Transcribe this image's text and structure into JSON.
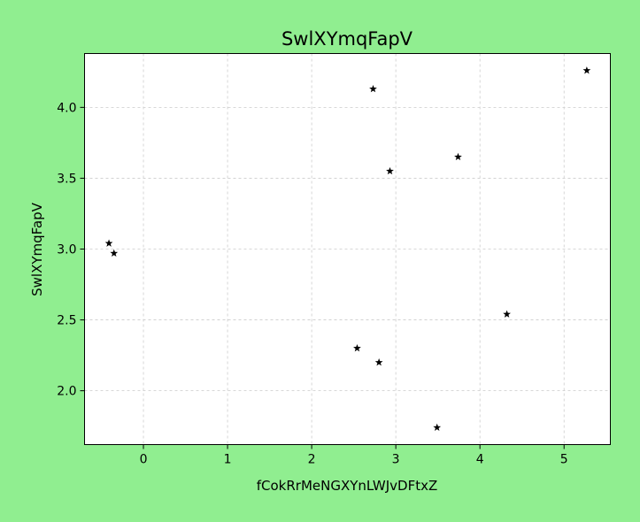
{
  "chart_data": {
    "type": "scatter",
    "title": "SwlXYmqFapV",
    "xlabel": "fCokRrMeNGXYnLWJvDFtxZ",
    "ylabel": "SwlXYmqFapV",
    "xlim": [
      -0.7,
      5.55
    ],
    "ylim": [
      1.62,
      4.38
    ],
    "x_ticks": [
      0,
      1,
      2,
      3,
      4,
      5
    ],
    "x_tick_labels": [
      "0",
      "1",
      "2",
      "3",
      "4",
      "5"
    ],
    "y_ticks": [
      2.0,
      2.5,
      3.0,
      3.5,
      4.0
    ],
    "y_tick_labels": [
      "2.0",
      "2.5",
      "3.0",
      "3.5",
      "4.0"
    ],
    "grid": true,
    "marker": "star",
    "colors": {
      "background": "#90ee90",
      "plot_bg": "#ffffff",
      "marker": "#000000",
      "grid": "#cccccc"
    },
    "series": [
      {
        "x": [
          -0.41,
          -0.35,
          2.54,
          2.73,
          2.8,
          2.93,
          3.49,
          3.74,
          4.32,
          5.27
        ],
        "y": [
          3.04,
          2.97,
          2.3,
          4.13,
          2.2,
          3.55,
          1.74,
          3.65,
          2.54,
          4.26
        ]
      }
    ]
  }
}
